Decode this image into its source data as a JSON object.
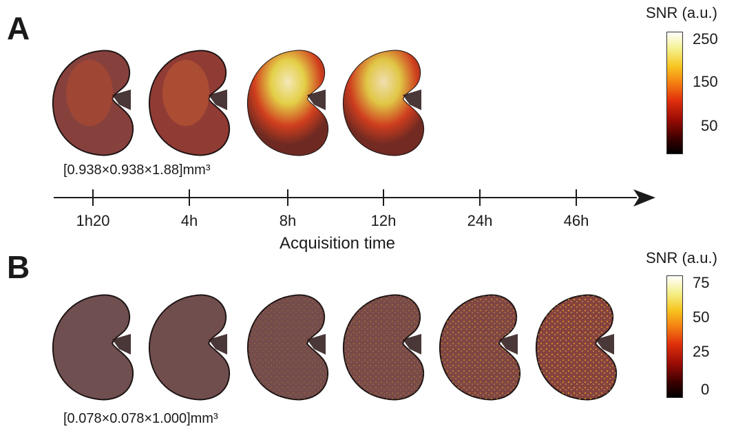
{
  "panels": {
    "a": {
      "label": "A",
      "resolution": "[0.938×0.938×1.88]mm³",
      "colorbar": {
        "title": "SNR (a.u.)",
        "ticks": [
          "250",
          "150",
          "50"
        ]
      },
      "kidney_intensities": [
        0.35,
        0.5,
        0.95,
        0.9
      ]
    },
    "b": {
      "label": "B",
      "resolution": "[0.078×0.078×1.000]mm³",
      "colorbar": {
        "title": "SNR (a.u.)",
        "ticks": [
          "75",
          "50",
          "25",
          "0"
        ]
      },
      "kidney_intensities": [
        0.05,
        0.1,
        0.22,
        0.35,
        0.6,
        0.85
      ]
    }
  },
  "timeline": {
    "labels": [
      "1h20",
      "4h",
      "8h",
      "12h",
      "24h",
      "46h"
    ],
    "title": "Acquisition time"
  },
  "colors": {
    "axis": "#1a1a1a",
    "tissue": "#6e5050",
    "hot_low": "#b3261a",
    "hot_high": "#f2e46a"
  }
}
